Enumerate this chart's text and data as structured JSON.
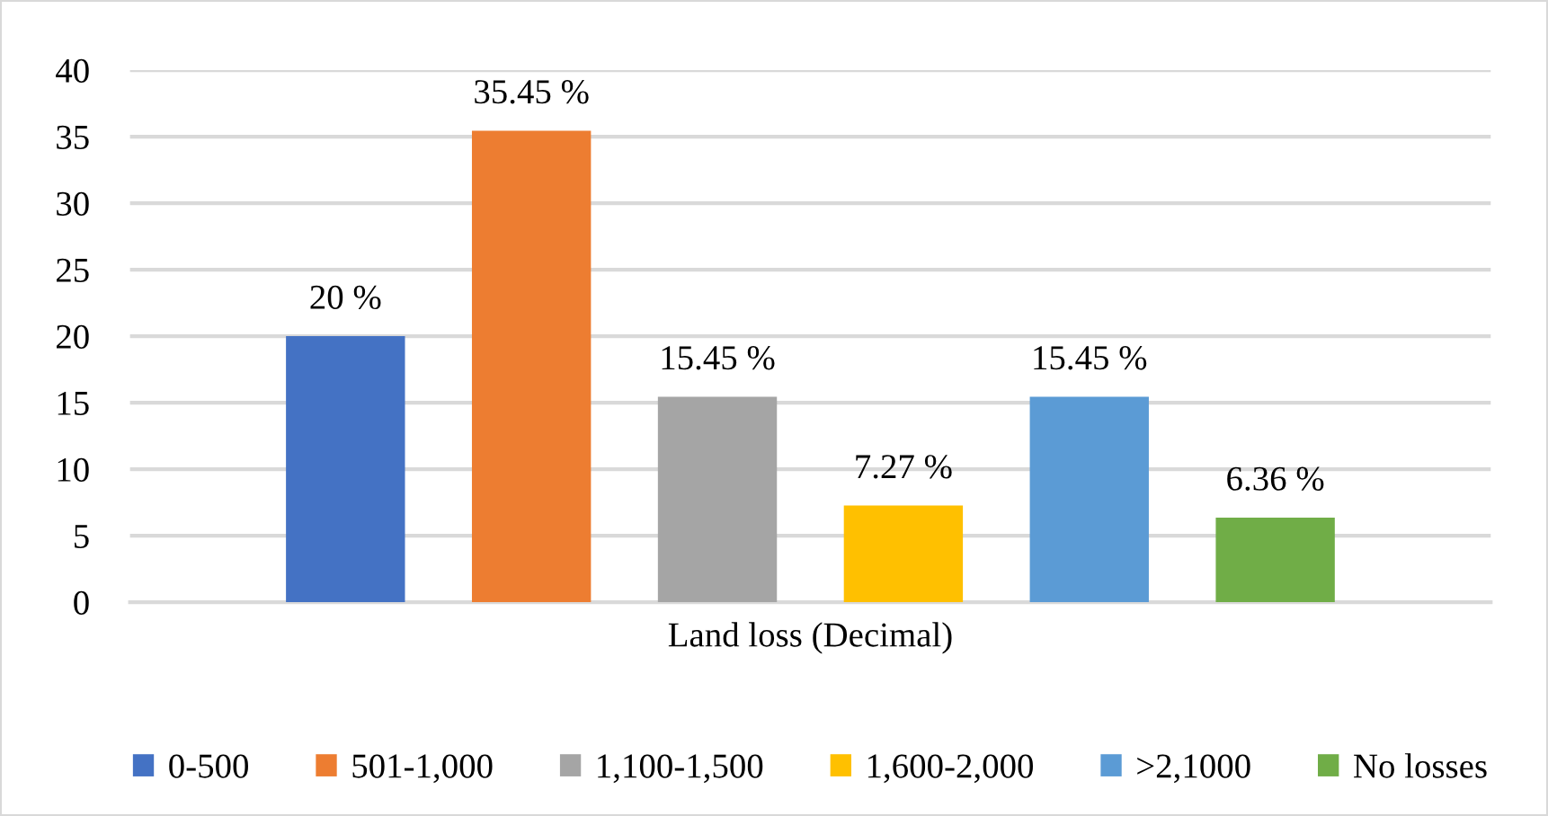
{
  "chart_data": {
    "type": "bar",
    "categories": [
      "Land loss (Decimal)"
    ],
    "series": [
      {
        "name": "0-500",
        "color": "#4472c4",
        "values": [
          20
        ],
        "value_labels": [
          "20 %"
        ]
      },
      {
        "name": "501-1,000",
        "color": "#ed7d31",
        "values": [
          35.45
        ],
        "value_labels": [
          "35.45 %"
        ]
      },
      {
        "name": "1,100-1,500",
        "color": "#a5a5a5",
        "values": [
          15.45
        ],
        "value_labels": [
          "15.45 %"
        ]
      },
      {
        "name": "1,600-2,000",
        "color": "#ffc000",
        "values": [
          7.27
        ],
        "value_labels": [
          "7.27 %"
        ]
      },
      {
        "name": ">2,1000",
        "color": "#5b9bd5",
        "values": [
          15.45
        ],
        "value_labels": [
          "15.45 %"
        ]
      },
      {
        "name": "No losses",
        "color": "#70ad47",
        "values": [
          6.36
        ],
        "value_labels": [
          "6.36 %"
        ]
      }
    ],
    "ylim": [
      0,
      40
    ],
    "yticks": [
      0,
      5,
      10,
      15,
      20,
      25,
      30,
      35,
      40
    ],
    "grid": "y",
    "legend": "bottom"
  }
}
